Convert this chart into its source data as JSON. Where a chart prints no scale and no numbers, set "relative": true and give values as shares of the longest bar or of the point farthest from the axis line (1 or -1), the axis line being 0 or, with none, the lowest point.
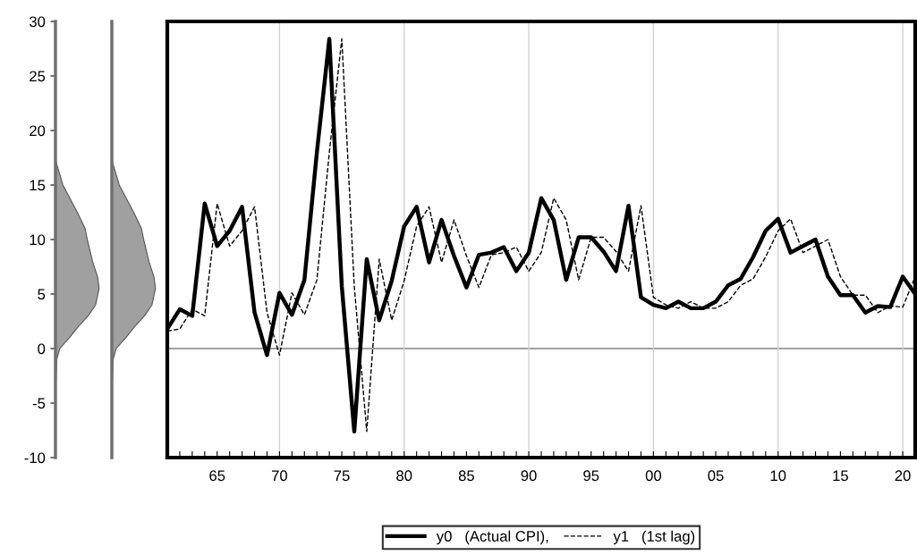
{
  "chart_data": [
    {
      "type": "area",
      "orientation": "horizontal",
      "relative": true,
      "ylim": [
        -10,
        30
      ],
      "yticks": [
        -10,
        -5,
        0,
        5,
        10,
        15,
        20,
        25,
        30
      ],
      "tick_labels": "y",
      "color": "#a0a0a0",
      "x": [
        -10,
        -3,
        -1,
        0,
        1,
        2,
        3,
        4,
        5.5,
        6.5,
        8,
        10,
        11,
        12.5,
        15,
        17.3,
        30
      ],
      "values": [
        0,
        0.01,
        0.03,
        0.1,
        0.32,
        0.52,
        0.75,
        0.92,
        1.0,
        0.97,
        0.85,
        0.73,
        0.68,
        0.5,
        0.17,
        0,
        0
      ]
    },
    {
      "type": "area",
      "orientation": "horizontal",
      "relative": true,
      "ylim": [
        -10,
        30
      ],
      "tick_labels": false,
      "color": "#a0a0a0",
      "x": [
        -10,
        -3,
        -1,
        0,
        1,
        2,
        3,
        4,
        5.5,
        6.5,
        8,
        10,
        11,
        12.5,
        15,
        17.3,
        30
      ],
      "values": [
        0,
        0.01,
        0.03,
        0.1,
        0.32,
        0.52,
        0.75,
        0.92,
        1.0,
        0.97,
        0.85,
        0.73,
        0.68,
        0.5,
        0.17,
        0,
        0
      ]
    },
    {
      "type": "line",
      "xlim": [
        1961,
        2021
      ],
      "ylim": [
        -10,
        30
      ],
      "tick_labels": "x",
      "legend": "bottom",
      "xticks": [
        {
          "value": 1961,
          "label": null
        },
        {
          "value": 1962,
          "label": null
        },
        {
          "value": 1963,
          "label": null
        },
        {
          "value": 1964,
          "label": null
        },
        {
          "value": 1965,
          "label": "65"
        },
        {
          "value": 1966,
          "label": null
        },
        {
          "value": 1967,
          "label": null
        },
        {
          "value": 1968,
          "label": null
        },
        {
          "value": 1969,
          "label": null
        },
        {
          "value": 1970,
          "label": "70"
        },
        {
          "value": 1971,
          "label": null
        },
        {
          "value": 1972,
          "label": null
        },
        {
          "value": 1973,
          "label": null
        },
        {
          "value": 1974,
          "label": null
        },
        {
          "value": 1975,
          "label": "75"
        },
        {
          "value": 1976,
          "label": null
        },
        {
          "value": 1977,
          "label": null
        },
        {
          "value": 1978,
          "label": null
        },
        {
          "value": 1979,
          "label": null
        },
        {
          "value": 1980,
          "label": "80"
        },
        {
          "value": 1981,
          "label": null
        },
        {
          "value": 1982,
          "label": null
        },
        {
          "value": 1983,
          "label": null
        },
        {
          "value": 1984,
          "label": null
        },
        {
          "value": 1985,
          "label": "85"
        },
        {
          "value": 1986,
          "label": null
        },
        {
          "value": 1987,
          "label": null
        },
        {
          "value": 1988,
          "label": null
        },
        {
          "value": 1989,
          "label": null
        },
        {
          "value": 1990,
          "label": "90"
        },
        {
          "value": 1991,
          "label": null
        },
        {
          "value": 1992,
          "label": null
        },
        {
          "value": 1993,
          "label": null
        },
        {
          "value": 1994,
          "label": null
        },
        {
          "value": 1995,
          "label": "95"
        },
        {
          "value": 1996,
          "label": null
        },
        {
          "value": 1997,
          "label": null
        },
        {
          "value": 1998,
          "label": null
        },
        {
          "value": 1999,
          "label": null
        },
        {
          "value": 2000,
          "label": "00"
        },
        {
          "value": 2001,
          "label": null
        },
        {
          "value": 2002,
          "label": null
        },
        {
          "value": 2003,
          "label": null
        },
        {
          "value": 2004,
          "label": null
        },
        {
          "value": 2005,
          "label": "05"
        },
        {
          "value": 2006,
          "label": null
        },
        {
          "value": 2007,
          "label": null
        },
        {
          "value": 2008,
          "label": null
        },
        {
          "value": 2009,
          "label": null
        },
        {
          "value": 2010,
          "label": "10"
        },
        {
          "value": 2011,
          "label": null
        },
        {
          "value": 2012,
          "label": null
        },
        {
          "value": 2013,
          "label": null
        },
        {
          "value": 2014,
          "label": null
        },
        {
          "value": 2015,
          "label": "15"
        },
        {
          "value": 2016,
          "label": null
        },
        {
          "value": 2017,
          "label": null
        },
        {
          "value": 2018,
          "label": null
        },
        {
          "value": 2019,
          "label": null
        },
        {
          "value": 2020,
          "label": "20"
        },
        {
          "value": 2021,
          "label": null
        }
      ],
      "ref_lines": [
        {
          "axis": "y",
          "value": 0,
          "color": "#808080"
        },
        {
          "axis": "x",
          "value": 1970,
          "color": "#d3d3d3"
        },
        {
          "axis": "x",
          "value": 1980,
          "color": "#d3d3d3"
        },
        {
          "axis": "x",
          "value": 1990,
          "color": "#d3d3d3"
        },
        {
          "axis": "x",
          "value": 2000,
          "color": "#d3d3d3"
        },
        {
          "axis": "x",
          "value": 2010,
          "color": "#d3d3d3"
        },
        {
          "axis": "x",
          "value": 2020,
          "color": "#d3d3d3"
        }
      ],
      "x": [
        1961,
        1962,
        1963,
        1964,
        1965,
        1966,
        1967,
        1968,
        1969,
        1970,
        1971,
        1972,
        1973,
        1974,
        1975,
        1976,
        1977,
        1978,
        1979,
        1980,
        1981,
        1982,
        1983,
        1984,
        1985,
        1986,
        1987,
        1988,
        1989,
        1990,
        1991,
        1992,
        1993,
        1994,
        1995,
        1996,
        1997,
        1998,
        1999,
        2000,
        2001,
        2002,
        2003,
        2004,
        2005,
        2006,
        2007,
        2008,
        2009,
        2010,
        2011,
        2012,
        2013,
        2014,
        2015,
        2016,
        2017,
        2018,
        2019,
        2020,
        2021
      ],
      "series": [
        {
          "name": "y0   (Actual CPI),",
          "color": "#000000",
          "line_style": "solid",
          "values": [
            1.8,
            3.6,
            3.0,
            13.3,
            9.4,
            10.8,
            13.0,
            3.3,
            -0.6,
            5.1,
            3.1,
            6.3,
            18.0,
            28.4,
            5.7,
            -7.6,
            8.2,
            2.6,
            6.2,
            11.2,
            13.0,
            7.9,
            11.8,
            8.5,
            5.6,
            8.6,
            8.8,
            9.3,
            7.1,
            8.8,
            13.8,
            11.8,
            6.3,
            10.2,
            10.2,
            8.9,
            7.1,
            13.1,
            4.7,
            4.0,
            3.7,
            4.3,
            3.7,
            3.7,
            4.3,
            5.8,
            6.4,
            8.4,
            10.8,
            11.9,
            8.8,
            9.4,
            10.0,
            6.6,
            4.9,
            4.9,
            3.3,
            3.9,
            3.8,
            6.6,
            5.0
          ]
        },
        {
          "name": "y1   (1st lag)",
          "color": "#000000",
          "line_style": "dashed",
          "values": [
            1.6,
            1.8,
            3.6,
            3.0,
            13.3,
            9.4,
            10.8,
            13.0,
            3.3,
            -0.6,
            5.1,
            3.1,
            6.3,
            18.0,
            28.4,
            5.7,
            -7.6,
            8.2,
            2.6,
            6.2,
            11.2,
            13.0,
            7.9,
            11.8,
            8.5,
            5.6,
            8.6,
            8.8,
            9.3,
            7.1,
            8.8,
            13.8,
            11.8,
            6.3,
            10.2,
            10.2,
            8.9,
            7.1,
            13.1,
            4.7,
            4.0,
            3.7,
            4.3,
            3.7,
            3.7,
            4.3,
            5.8,
            6.4,
            8.4,
            10.8,
            11.9,
            8.8,
            9.4,
            10.0,
            6.6,
            4.9,
            4.9,
            3.3,
            3.9,
            3.8,
            6.6
          ]
        }
      ]
    }
  ]
}
